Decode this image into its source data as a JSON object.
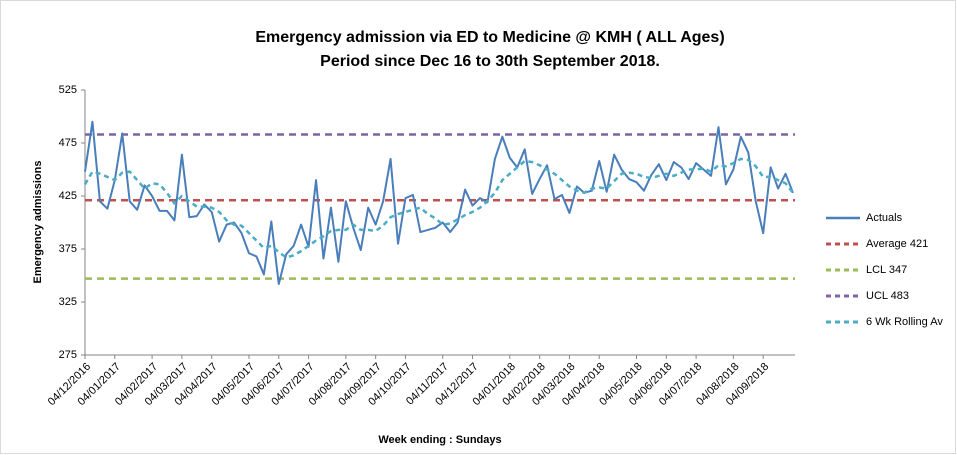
{
  "chart_data": {
    "type": "line",
    "title": [
      "Emergency admission via ED to Medicine @ KMH ( ALL Ages)",
      "Period since Dec 16 to 30th September 2018."
    ],
    "x_label": "Week ending : Sundays",
    "y_label": "Emergency admissions",
    "ylim": [
      275,
      525
    ],
    "yticks": [
      275,
      325,
      375,
      425,
      475,
      525
    ],
    "grid": false,
    "legend": "right",
    "categories": [
      "04/12/2016",
      null,
      null,
      null,
      "04/01/2017",
      null,
      null,
      null,
      null,
      "04/02/2017",
      null,
      null,
      null,
      "04/03/2017",
      null,
      null,
      null,
      "04/04/2017",
      null,
      null,
      null,
      null,
      "04/05/2017",
      null,
      null,
      null,
      "04/06/2017",
      null,
      null,
      null,
      "04/07/2017",
      null,
      null,
      null,
      null,
      "04/08/2017",
      null,
      null,
      null,
      "04/09/2017",
      null,
      null,
      null,
      "04/10/2017",
      null,
      null,
      null,
      null,
      "04/11/2017",
      null,
      null,
      null,
      "04/12/2017",
      null,
      null,
      null,
      null,
      "04/01/2018",
      null,
      null,
      null,
      "04/02/2018",
      null,
      null,
      null,
      "04/03/2018",
      null,
      null,
      null,
      "04/04/2018",
      null,
      null,
      null,
      null,
      "04/05/2018",
      null,
      null,
      null,
      "04/06/2018",
      null,
      null,
      null,
      "04/07/2018",
      null,
      null,
      null,
      null,
      "04/08/2018",
      null,
      null,
      null,
      "04/09/2018",
      null,
      null,
      null,
      null
    ],
    "series": [
      {
        "name": "Actuals",
        "color": "#4a7ebb",
        "dashed": false,
        "values": [
          448,
          495,
          420,
          413,
          440,
          484,
          420,
          412,
          435,
          425,
          411,
          411,
          402,
          464,
          405,
          406,
          417,
          410,
          382,
          398,
          400,
          390,
          371,
          368,
          351,
          401,
          342,
          370,
          378,
          398,
          377,
          440,
          366,
          414,
          363,
          420,
          395,
          374,
          414,
          398,
          420,
          460,
          380,
          423,
          426,
          391,
          393,
          395,
          400,
          391,
          400,
          431,
          416,
          423,
          419,
          460,
          481,
          461,
          452,
          469,
          427,
          441,
          454,
          422,
          426,
          409,
          434,
          428,
          430,
          458,
          429,
          464,
          450,
          441,
          438,
          430,
          445,
          455,
          440,
          457,
          452,
          441,
          456,
          450,
          444,
          490,
          436,
          450,
          481,
          466,
          420,
          390,
          452,
          432,
          446,
          428
        ]
      },
      {
        "name": "6 Wk Rolling Av",
        "color": "#4bacc6",
        "dashed": true,
        "values": [
          436,
          448,
          446,
          443,
          440,
          447,
          448,
          440,
          432,
          437,
          436,
          428,
          418,
          425,
          420,
          415,
          415,
          414,
          410,
          402,
          398,
          397,
          390,
          383,
          376,
          378,
          372,
          367,
          369,
          373,
          378,
          383,
          387,
          392,
          393,
          393,
          398,
          393,
          393,
          392,
          397,
          405,
          408,
          410,
          412,
          414,
          408,
          404,
          398,
          399,
          403,
          407,
          410,
          414,
          420,
          428,
          440,
          446,
          452,
          458,
          457,
          454,
          450,
          446,
          440,
          434,
          430,
          428,
          432,
          433,
          432,
          439,
          446,
          447,
          446,
          443,
          442,
          444,
          446,
          444,
          447,
          450,
          450,
          451,
          448,
          454,
          453,
          456,
          460,
          459,
          453,
          443,
          443,
          440,
          437,
          428
        ]
      }
    ],
    "reference_lines": [
      {
        "name": "Average 421",
        "value": 421,
        "color": "#c0504d"
      },
      {
        "name": "LCL 347",
        "value": 347,
        "color": "#9bbb59"
      },
      {
        "name": "UCL 483",
        "value": 483,
        "color": "#8064a2"
      }
    ]
  }
}
